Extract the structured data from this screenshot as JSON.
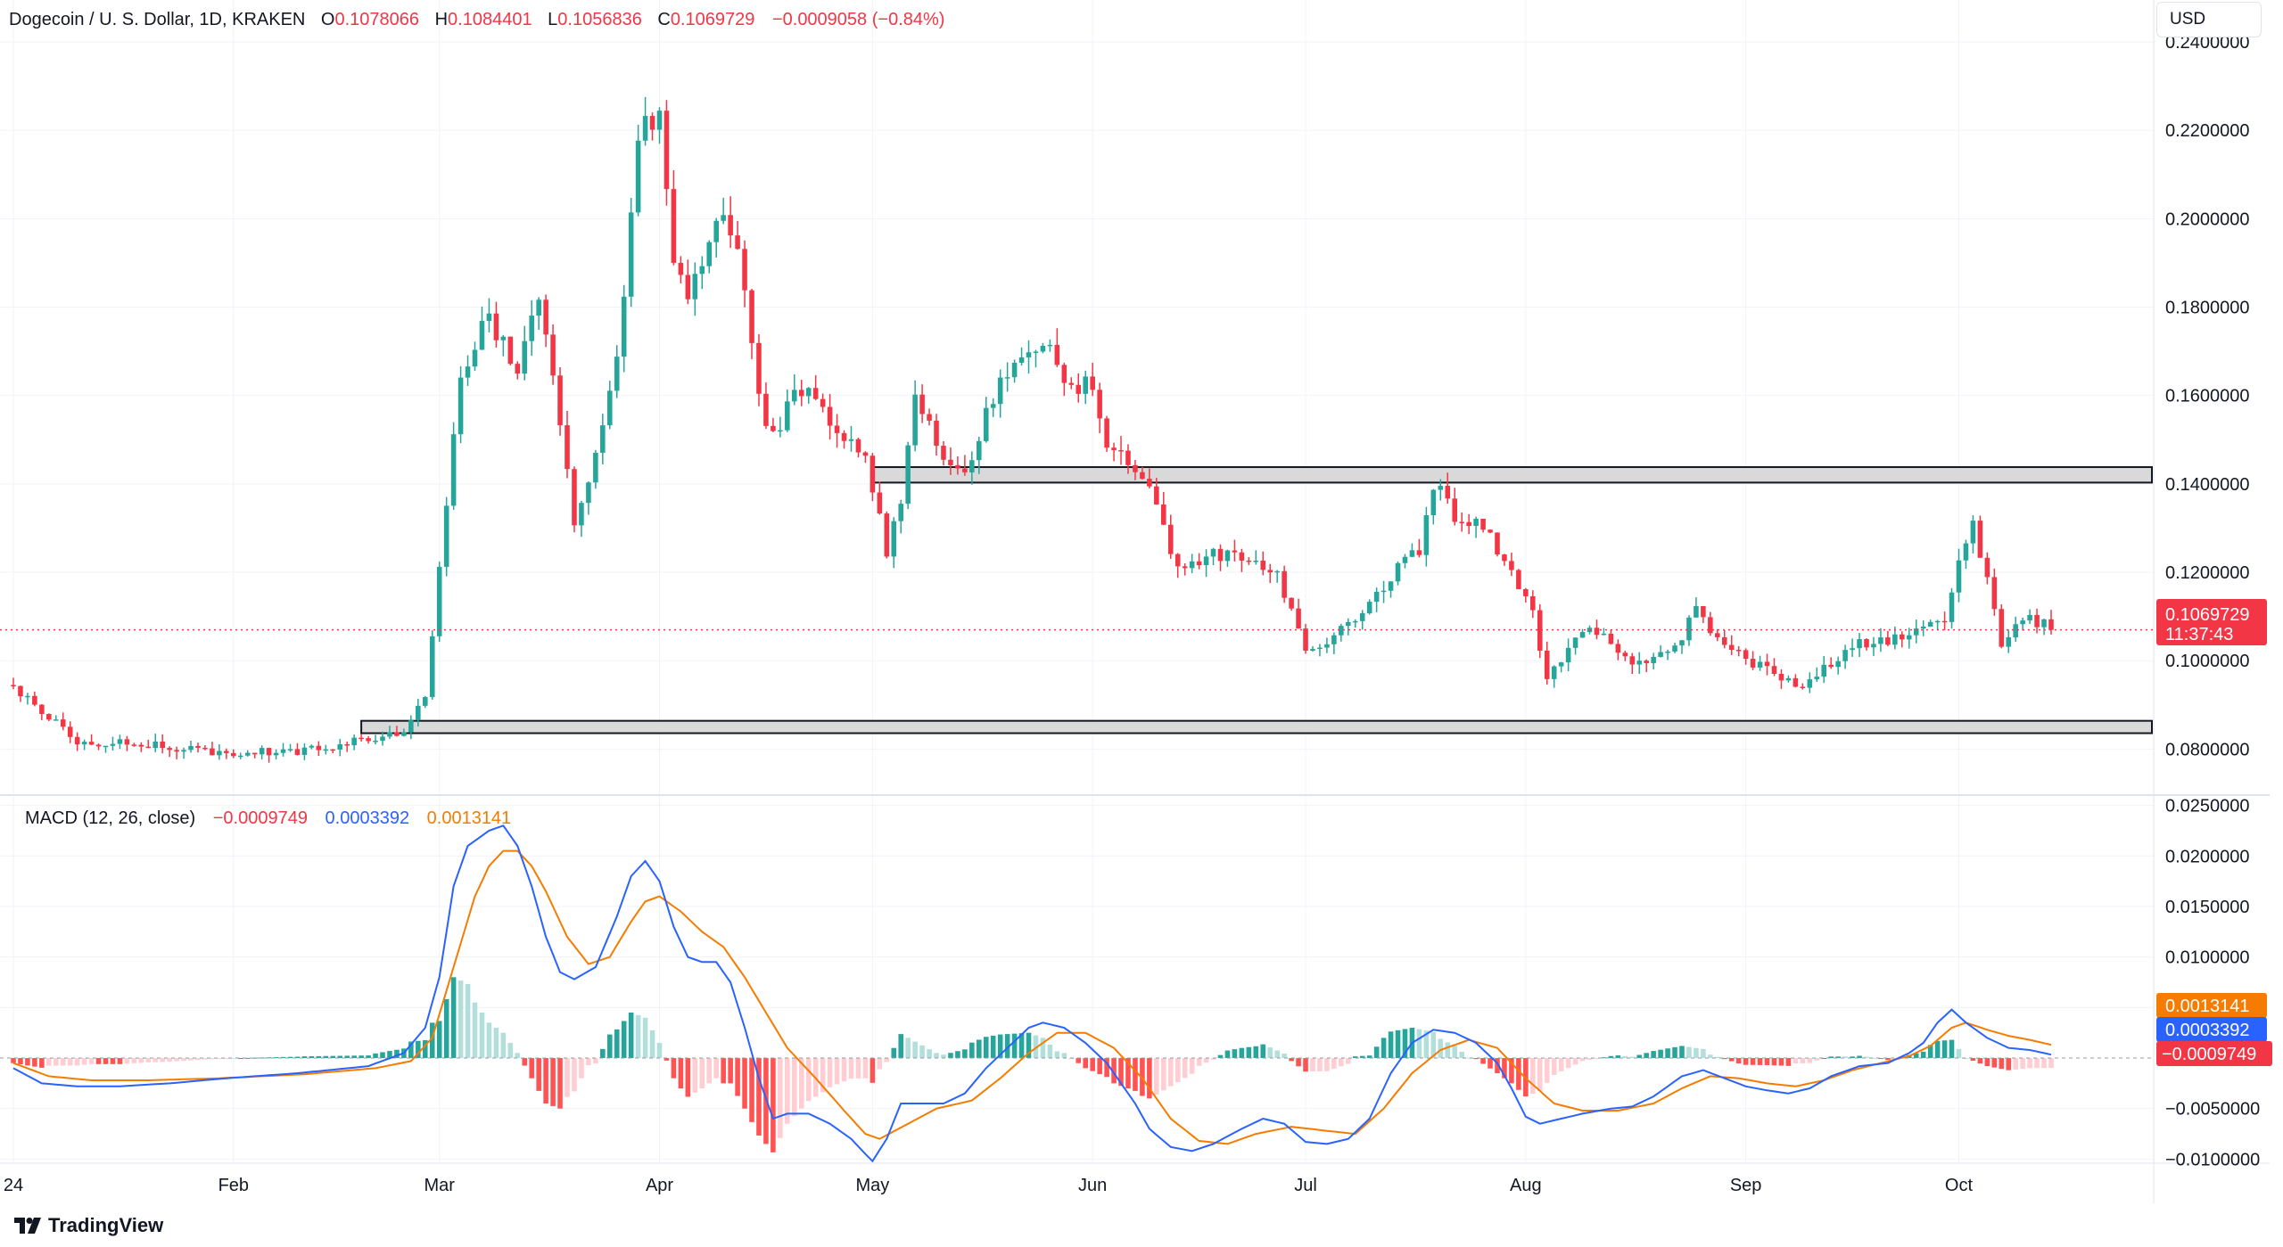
{
  "header": {
    "symbol_title": "Dogecoin / U. S. Dollar, 1D, KRAKEN",
    "o_label": "O",
    "o_value": "0.1078066",
    "h_label": "H",
    "h_value": "0.1084401",
    "l_label": "L",
    "l_value": "0.1056836",
    "c_label": "C",
    "c_value": "0.1069729",
    "change": "−0.0009058 (−0.84%)",
    "currency": "USD"
  },
  "macd_legend": {
    "title": "MACD (12, 26, close)",
    "hist_value": "−0.0009749",
    "macd_value": "0.0003392",
    "signal_value": "0.0013141"
  },
  "price_tag": {
    "price": "0.1069729",
    "countdown": "11:37:43"
  },
  "macd_tags": {
    "signal": "0.0013141",
    "macd": "0.0003392",
    "hist": "−0.0009749"
  },
  "branding": {
    "logo_text": "TradingView"
  },
  "colors": {
    "up": "#26a69a",
    "down": "#f23645",
    "macd_line": "#2962ff",
    "signal_line": "#f57c00",
    "zone_fill": "#d9d9d9"
  },
  "chart_data": [
    {
      "type": "candlestick",
      "title": "Dogecoin / U. S. Dollar, 1D, KRAKEN",
      "ylim": [
        0.07,
        0.24
      ],
      "y_ticks": [
        0.08,
        0.1,
        0.12,
        0.14,
        0.16,
        0.18,
        0.2,
        0.22,
        0.24
      ],
      "y_tick_labels": [
        "0.0800000",
        "0.1000000",
        "0.1200000",
        "0.1400000",
        "0.1600000",
        "0.1800000",
        "0.2000000",
        "0.2200000",
        "0.2400000"
      ],
      "x_tick_labels": [
        "24",
        "Feb",
        "Mar",
        "Apr",
        "May",
        "Jun",
        "Jul",
        "Aug",
        "Sep",
        "Oct"
      ],
      "x_tick_days": [
        1,
        32,
        61,
        92,
        122,
        153,
        183,
        214,
        245,
        275
      ],
      "day_range": [
        1,
        288
      ],
      "zones": [
        {
          "name": "resistance",
          "low": 0.1403,
          "high": 0.1438,
          "from_day": 122
        },
        {
          "name": "support",
          "low": 0.0836,
          "high": 0.0864,
          "from_day": 50
        }
      ],
      "last_close": 0.1069729,
      "anchors": [
        [
          1,
          0.0945
        ],
        [
          10,
          0.082
        ],
        [
          21,
          0.081
        ],
        [
          31,
          0.079
        ],
        [
          45,
          0.08
        ],
        [
          56,
          0.0845
        ],
        [
          59,
          0.093
        ],
        [
          61,
          0.12
        ],
        [
          64,
          0.165
        ],
        [
          68,
          0.178
        ],
        [
          72,
          0.165
        ],
        [
          75,
          0.182
        ],
        [
          78,
          0.155
        ],
        [
          80,
          0.13
        ],
        [
          83,
          0.148
        ],
        [
          86,
          0.168
        ],
        [
          89,
          0.218
        ],
        [
          92,
          0.225
        ],
        [
          94,
          0.19
        ],
        [
          96,
          0.18
        ],
        [
          100,
          0.2
        ],
        [
          103,
          0.195
        ],
        [
          106,
          0.16
        ],
        [
          108,
          0.15
        ],
        [
          111,
          0.162
        ],
        [
          114,
          0.16
        ],
        [
          118,
          0.15
        ],
        [
          121,
          0.145
        ],
        [
          124,
          0.125
        ],
        [
          126,
          0.135
        ],
        [
          128,
          0.162
        ],
        [
          131,
          0.148
        ],
        [
          135,
          0.142
        ],
        [
          138,
          0.156
        ],
        [
          142,
          0.168
        ],
        [
          146,
          0.172
        ],
        [
          150,
          0.162
        ],
        [
          153,
          0.163
        ],
        [
          155,
          0.15
        ],
        [
          158,
          0.145
        ],
        [
          162,
          0.137
        ],
        [
          165,
          0.12
        ],
        [
          170,
          0.124
        ],
        [
          175,
          0.124
        ],
        [
          179,
          0.12
        ],
        [
          183,
          0.102
        ],
        [
          188,
          0.107
        ],
        [
          192,
          0.112
        ],
        [
          196,
          0.121
        ],
        [
          199,
          0.125
        ],
        [
          201,
          0.14
        ],
        [
          204,
          0.133
        ],
        [
          208,
          0.131
        ],
        [
          212,
          0.12
        ],
        [
          215,
          0.112
        ],
        [
          217,
          0.095
        ],
        [
          221,
          0.105
        ],
        [
          225,
          0.107
        ],
        [
          229,
          0.099
        ],
        [
          234,
          0.101
        ],
        [
          238,
          0.111
        ],
        [
          242,
          0.104
        ],
        [
          245,
          0.1
        ],
        [
          249,
          0.098
        ],
        [
          252,
          0.094
        ],
        [
          256,
          0.098
        ],
        [
          260,
          0.104
        ],
        [
          265,
          0.104
        ],
        [
          269,
          0.107
        ],
        [
          273,
          0.108
        ],
        [
          275,
          0.123
        ],
        [
          277,
          0.13
        ],
        [
          279,
          0.12
        ],
        [
          281,
          0.104
        ],
        [
          283,
          0.107
        ],
        [
          285,
          0.11
        ],
        [
          288,
          0.107
        ]
      ]
    },
    {
      "type": "macd",
      "title": "MACD (12, 26, close)",
      "ylim": [
        -0.0112,
        0.0262
      ],
      "y_ticks": [
        -0.01,
        -0.005,
        0.005,
        0.01,
        0.015,
        0.02,
        0.025
      ],
      "y_tick_labels": [
        "−0.0100000",
        "−0.0050000",
        "0.0050000",
        "0.0100000",
        "0.0150000",
        "0.0200000",
        "0.0250000"
      ],
      "series": [
        {
          "name": "MACD",
          "last": 0.0003392
        },
        {
          "name": "Signal",
          "last": 0.0013141
        },
        {
          "name": "Histogram",
          "last": -0.0009749
        }
      ],
      "macd_anchors": [
        [
          1,
          -0.001
        ],
        [
          5,
          -0.0025
        ],
        [
          10,
          -0.0028
        ],
        [
          16,
          -0.0028
        ],
        [
          23,
          -0.0025
        ],
        [
          31,
          -0.002
        ],
        [
          41,
          -0.0015
        ],
        [
          51,
          -0.0008
        ],
        [
          56,
          0.0005
        ],
        [
          59,
          0.003
        ],
        [
          61,
          0.008
        ],
        [
          63,
          0.017
        ],
        [
          65,
          0.021
        ],
        [
          68,
          0.0225
        ],
        [
          70,
          0.023
        ],
        [
          72,
          0.021
        ],
        [
          74,
          0.017
        ],
        [
          76,
          0.012
        ],
        [
          78,
          0.0085
        ],
        [
          80,
          0.0078
        ],
        [
          83,
          0.009
        ],
        [
          86,
          0.014
        ],
        [
          88,
          0.018
        ],
        [
          90,
          0.0195
        ],
        [
          92,
          0.0175
        ],
        [
          94,
          0.013
        ],
        [
          96,
          0.01
        ],
        [
          98,
          0.0095
        ],
        [
          100,
          0.0095
        ],
        [
          102,
          0.0075
        ],
        [
          104,
          0.003
        ],
        [
          106,
          -0.002
        ],
        [
          108,
          -0.006
        ],
        [
          110,
          -0.0055
        ],
        [
          113,
          -0.0055
        ],
        [
          116,
          -0.0065
        ],
        [
          119,
          -0.008
        ],
        [
          121,
          -0.0095
        ],
        [
          122,
          -0.0102
        ],
        [
          124,
          -0.008
        ],
        [
          126,
          -0.0045
        ],
        [
          129,
          -0.0045
        ],
        [
          132,
          -0.0045
        ],
        [
          135,
          -0.0035
        ],
        [
          138,
          -0.001
        ],
        [
          141,
          0.001
        ],
        [
          144,
          0.003
        ],
        [
          146,
          0.0035
        ],
        [
          149,
          0.003
        ],
        [
          152,
          0.0015
        ],
        [
          155,
          -0.0005
        ],
        [
          157,
          -0.0025
        ],
        [
          159,
          -0.0045
        ],
        [
          161,
          -0.007
        ],
        [
          164,
          -0.0088
        ],
        [
          167,
          -0.0092
        ],
        [
          170,
          -0.0085
        ],
        [
          174,
          -0.007
        ],
        [
          177,
          -0.006
        ],
        [
          180,
          -0.0065
        ],
        [
          183,
          -0.0083
        ],
        [
          186,
          -0.0085
        ],
        [
          189,
          -0.008
        ],
        [
          192,
          -0.006
        ],
        [
          195,
          -0.0015
        ],
        [
          198,
          0.0015
        ],
        [
          201,
          0.0028
        ],
        [
          204,
          0.0025
        ],
        [
          207,
          0.0015
        ],
        [
          210,
          -0.0005
        ],
        [
          212,
          -0.003
        ],
        [
          214,
          -0.0058
        ],
        [
          216,
          -0.0065
        ],
        [
          219,
          -0.006
        ],
        [
          222,
          -0.0055
        ],
        [
          226,
          -0.005
        ],
        [
          229,
          -0.0048
        ],
        [
          232,
          -0.0038
        ],
        [
          236,
          -0.0018
        ],
        [
          239,
          -0.0012
        ],
        [
          242,
          -0.002
        ],
        [
          245,
          -0.0028
        ],
        [
          248,
          -0.0032
        ],
        [
          251,
          -0.0035
        ],
        [
          254,
          -0.003
        ],
        [
          257,
          -0.0018
        ],
        [
          261,
          -0.0008
        ],
        [
          265,
          -0.0005
        ],
        [
          268,
          0.0005
        ],
        [
          270,
          0.0015
        ],
        [
          272,
          0.0035
        ],
        [
          274,
          0.0048
        ],
        [
          276,
          0.0035
        ],
        [
          279,
          0.002
        ],
        [
          282,
          0.001
        ],
        [
          285,
          0.0008
        ],
        [
          288,
          0.0003392
        ]
      ],
      "signal_anchors": [
        [
          1,
          -0.0005
        ],
        [
          6,
          -0.0018
        ],
        [
          12,
          -0.0022
        ],
        [
          20,
          -0.0022
        ],
        [
          30,
          -0.002
        ],
        [
          42,
          -0.0016
        ],
        [
          52,
          -0.001
        ],
        [
          57,
          -0.0003
        ],
        [
          60,
          0.002
        ],
        [
          63,
          0.009
        ],
        [
          66,
          0.016
        ],
        [
          68,
          0.019
        ],
        [
          70,
          0.0205
        ],
        [
          72,
          0.0205
        ],
        [
          74,
          0.019
        ],
        [
          76,
          0.0165
        ],
        [
          79,
          0.012
        ],
        [
          82,
          0.0093
        ],
        [
          85,
          0.01
        ],
        [
          88,
          0.0135
        ],
        [
          90,
          0.0155
        ],
        [
          92,
          0.016
        ],
        [
          95,
          0.0145
        ],
        [
          98,
          0.0125
        ],
        [
          101,
          0.011
        ],
        [
          104,
          0.008
        ],
        [
          107,
          0.0045
        ],
        [
          110,
          0.001
        ],
        [
          114,
          -0.002
        ],
        [
          118,
          -0.0052
        ],
        [
          121,
          -0.0075
        ],
        [
          123,
          -0.008
        ],
        [
          127,
          -0.0065
        ],
        [
          131,
          -0.005
        ],
        [
          136,
          -0.0042
        ],
        [
          140,
          -0.002
        ],
        [
          144,
          0.0005
        ],
        [
          148,
          0.0025
        ],
        [
          152,
          0.0025
        ],
        [
          156,
          0.001
        ],
        [
          160,
          -0.002
        ],
        [
          164,
          -0.006
        ],
        [
          168,
          -0.0082
        ],
        [
          172,
          -0.0085
        ],
        [
          176,
          -0.0075
        ],
        [
          181,
          -0.0068
        ],
        [
          186,
          -0.0072
        ],
        [
          190,
          -0.0075
        ],
        [
          194,
          -0.005
        ],
        [
          198,
          -0.0015
        ],
        [
          202,
          0.0008
        ],
        [
          206,
          0.0018
        ],
        [
          210,
          0.001
        ],
        [
          214,
          -0.002
        ],
        [
          218,
          -0.0045
        ],
        [
          222,
          -0.0052
        ],
        [
          227,
          -0.0052
        ],
        [
          232,
          -0.0045
        ],
        [
          236,
          -0.003
        ],
        [
          240,
          -0.0018
        ],
        [
          244,
          -0.002
        ],
        [
          248,
          -0.0025
        ],
        [
          252,
          -0.0028
        ],
        [
          256,
          -0.0022
        ],
        [
          260,
          -0.0012
        ],
        [
          264,
          -0.0005
        ],
        [
          268,
          0.0002
        ],
        [
          271,
          0.0012
        ],
        [
          274,
          0.003
        ],
        [
          276,
          0.0035
        ],
        [
          279,
          0.0028
        ],
        [
          282,
          0.0022
        ],
        [
          285,
          0.0018
        ],
        [
          288,
          0.0013141
        ]
      ]
    }
  ]
}
